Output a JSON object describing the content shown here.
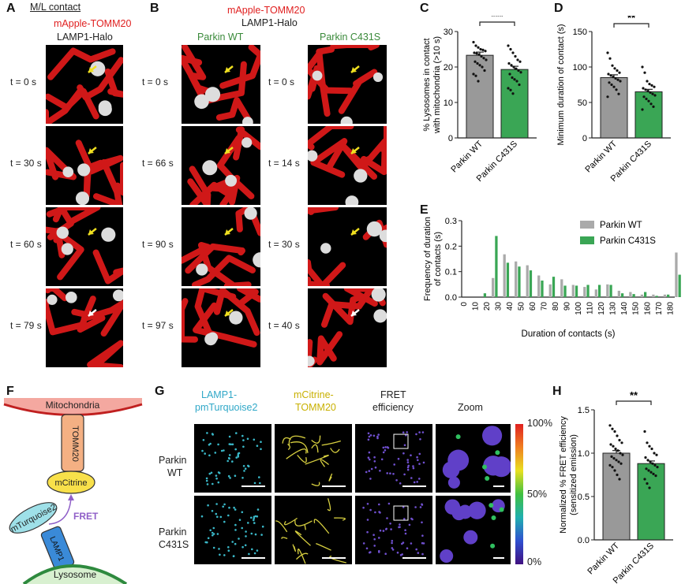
{
  "panels": {
    "A": {
      "letter": "A",
      "header": "M/L contact",
      "stain1": "mApple-TOMM20",
      "stain2": "LAMP1-Halo",
      "times": [
        "t = 0 s",
        "t = 30 s",
        "t = 60 s",
        "t = 79 s"
      ]
    },
    "B": {
      "letter": "B",
      "stain1": "mApple-TOMM20",
      "stain2": "LAMP1-Halo",
      "wt": "Parkin WT",
      "mut": "Parkin C431S",
      "times_wt": [
        "t = 0 s",
        "t = 66 s",
        "t = 90 s",
        "t = 97 s"
      ],
      "times_mut": [
        "t = 0 s",
        "t = 14 s",
        "t = 30 s",
        "t = 40 s"
      ]
    },
    "C": {
      "letter": "C",
      "sig": "***"
    },
    "D": {
      "letter": "D",
      "sig": "**"
    },
    "E": {
      "letter": "E"
    },
    "F": {
      "letter": "F",
      "mito": "Mitochondria",
      "tomm": "TOMM20",
      "mcit": "mCitrine",
      "mturq": "mTurquoise2",
      "fret": "FRET",
      "lamp": "LAMP1",
      "lyso": "Lysosome"
    },
    "G": {
      "letter": "G",
      "col1a": "LAMP1-",
      "col1b": "pmTurquoise2",
      "col2a": "mCitrine-",
      "col2b": "TOMM20",
      "col3a": "FRET",
      "col3b": "efficiency",
      "col4": "Zoom",
      "row1a": "Parkin",
      "row1b": "WT",
      "row2a": "Parkin",
      "row2b": "C431S",
      "scale_top": "100%",
      "scale_mid": "50%",
      "scale_bot": "0%"
    },
    "H": {
      "letter": "H",
      "sig": "**"
    }
  },
  "chart_data": [
    {
      "id": "C",
      "type": "bar",
      "categories": [
        "Parkin WT",
        "Parkin C431S"
      ],
      "values": [
        23.3,
        19.3
      ],
      "errors": [
        0.9,
        0.9
      ],
      "colors": [
        "#999999",
        "#3aa655"
      ],
      "ylabel": "% Lysosomes in contact with mitochondria (>10 s)",
      "ylabel_lines": [
        "% Lysosomes in contact",
        "with mitochondria (>10 s)"
      ],
      "ylim": [
        0,
        30
      ],
      "yticks": [
        "0",
        "10",
        "20",
        "30"
      ],
      "points": [
        [
          27,
          26,
          25.5,
          25,
          24.8,
          24.5,
          24,
          23.8,
          23.5,
          23,
          22.5,
          22,
          21.5,
          21,
          20.5,
          20,
          19,
          18,
          17.5,
          16
        ],
        [
          26,
          25,
          24,
          23,
          22,
          21.5,
          21,
          20.5,
          20,
          19.5,
          19,
          18.5,
          18,
          17,
          16.5,
          16,
          15,
          14,
          13.5,
          12.5
        ]
      ]
    },
    {
      "id": "D",
      "type": "bar",
      "categories": [
        "Parkin WT",
        "Parkin C431S"
      ],
      "values": [
        85,
        65
      ],
      "errors": [
        4,
        3.5
      ],
      "colors": [
        "#999999",
        "#3aa655"
      ],
      "ylabel": "Minimum duration of contact (s)",
      "ylim": [
        0,
        150
      ],
      "yticks": [
        "0",
        "50",
        "100",
        "150"
      ],
      "points": [
        [
          120,
          112,
          102,
          98,
          95,
          92,
          90,
          88,
          86,
          84,
          82,
          80,
          78,
          75,
          72,
          68,
          62,
          58
        ],
        [
          100,
          92,
          80,
          76,
          74,
          72,
          70,
          68,
          66,
          64,
          62,
          60,
          58,
          55,
          52,
          48,
          44,
          40
        ]
      ]
    },
    {
      "id": "E",
      "type": "bar",
      "xlabel": "Duration of contacts (s)",
      "ylabel": "Frequency of duration of contacts (s)",
      "ylabel_lines": [
        "Frequency of duration",
        "of contacts (s)"
      ],
      "ylim": [
        0,
        0.3
      ],
      "yticks": [
        "0.0",
        "0.1",
        "0.2",
        "0.3"
      ],
      "categories": [
        "0",
        "10",
        "20",
        "30",
        "40",
        "50",
        "60",
        "70",
        "80",
        "90",
        "100",
        "110",
        "120",
        "130",
        "140",
        "150",
        "160",
        "170",
        "180"
      ],
      "series": [
        {
          "name": "Parkin WT",
          "color": "#aaaaaa",
          "values": [
            0,
            0,
            0.075,
            0.168,
            0.14,
            0.125,
            0.085,
            0.05,
            0.07,
            0.048,
            0.04,
            0.03,
            0.05,
            0.025,
            0.02,
            0.01,
            0.01,
            0.01,
            0.175
          ]
        },
        {
          "name": "Parkin C431S",
          "color": "#3aa655",
          "values": [
            0,
            0.015,
            0.24,
            0.135,
            0.12,
            0.105,
            0.065,
            0.08,
            0.045,
            0.045,
            0.048,
            0.048,
            0.048,
            0.015,
            0.012,
            0.02,
            0.005,
            0.01,
            0.088
          ]
        }
      ]
    },
    {
      "id": "H",
      "type": "bar",
      "categories": [
        "Parkin WT",
        "Parkin C431S"
      ],
      "values": [
        1.0,
        0.88
      ],
      "errors": [
        0.03,
        0.03
      ],
      "colors": [
        "#999999",
        "#3aa655"
      ],
      "ylabel": "Normalized % FRET efficiency (sensitized emission)",
      "ylabel_lines": [
        "Normalized % FRET efficiency",
        "(sensitized emission)"
      ],
      "ylim": [
        0,
        1.5
      ],
      "yticks": [
        "0.0",
        "0.5",
        "1.0",
        "1.5"
      ],
      "points": [
        [
          1.32,
          1.28,
          1.25,
          1.2,
          1.15,
          1.12,
          1.1,
          1.08,
          1.05,
          1.03,
          1.0,
          0.98,
          0.96,
          0.94,
          0.92,
          0.9,
          0.88,
          0.86,
          0.84,
          0.8,
          0.75,
          0.7
        ],
        [
          1.25,
          1.12,
          1.08,
          1.05,
          1.0,
          0.98,
          0.95,
          0.92,
          0.9,
          0.88,
          0.86,
          0.84,
          0.82,
          0.8,
          0.78,
          0.76,
          0.74,
          0.7,
          0.65,
          0.6
        ]
      ]
    }
  ]
}
